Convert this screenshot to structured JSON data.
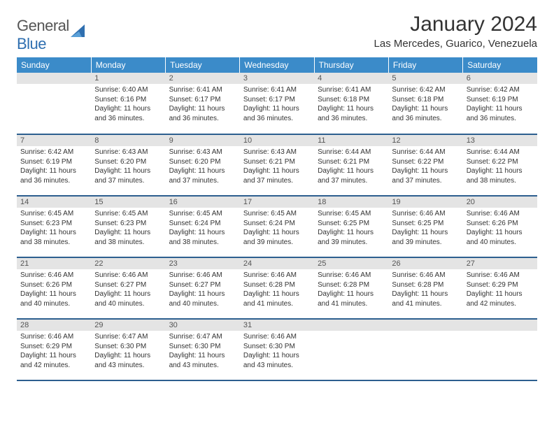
{
  "logo": {
    "word1": "General",
    "word2": "Blue"
  },
  "title": "January 2024",
  "location": "Las Mercedes, Guarico, Venezuela",
  "colors": {
    "header_bg": "#3b8bc9",
    "header_text": "#ffffff",
    "daynum_bg": "#e4e4e4",
    "row_border": "#2d5f8f",
    "logo_blue": "#2f6fb0"
  },
  "day_headers": [
    "Sunday",
    "Monday",
    "Tuesday",
    "Wednesday",
    "Thursday",
    "Friday",
    "Saturday"
  ],
  "weeks": [
    [
      {
        "n": "",
        "sr": "",
        "ss": "",
        "dl": ""
      },
      {
        "n": "1",
        "sr": "6:40 AM",
        "ss": "6:16 PM",
        "dl": "11 hours and 36 minutes."
      },
      {
        "n": "2",
        "sr": "6:41 AM",
        "ss": "6:17 PM",
        "dl": "11 hours and 36 minutes."
      },
      {
        "n": "3",
        "sr": "6:41 AM",
        "ss": "6:17 PM",
        "dl": "11 hours and 36 minutes."
      },
      {
        "n": "4",
        "sr": "6:41 AM",
        "ss": "6:18 PM",
        "dl": "11 hours and 36 minutes."
      },
      {
        "n": "5",
        "sr": "6:42 AM",
        "ss": "6:18 PM",
        "dl": "11 hours and 36 minutes."
      },
      {
        "n": "6",
        "sr": "6:42 AM",
        "ss": "6:19 PM",
        "dl": "11 hours and 36 minutes."
      }
    ],
    [
      {
        "n": "7",
        "sr": "6:42 AM",
        "ss": "6:19 PM",
        "dl": "11 hours and 36 minutes."
      },
      {
        "n": "8",
        "sr": "6:43 AM",
        "ss": "6:20 PM",
        "dl": "11 hours and 37 minutes."
      },
      {
        "n": "9",
        "sr": "6:43 AM",
        "ss": "6:20 PM",
        "dl": "11 hours and 37 minutes."
      },
      {
        "n": "10",
        "sr": "6:43 AM",
        "ss": "6:21 PM",
        "dl": "11 hours and 37 minutes."
      },
      {
        "n": "11",
        "sr": "6:44 AM",
        "ss": "6:21 PM",
        "dl": "11 hours and 37 minutes."
      },
      {
        "n": "12",
        "sr": "6:44 AM",
        "ss": "6:22 PM",
        "dl": "11 hours and 37 minutes."
      },
      {
        "n": "13",
        "sr": "6:44 AM",
        "ss": "6:22 PM",
        "dl": "11 hours and 38 minutes."
      }
    ],
    [
      {
        "n": "14",
        "sr": "6:45 AM",
        "ss": "6:23 PM",
        "dl": "11 hours and 38 minutes."
      },
      {
        "n": "15",
        "sr": "6:45 AM",
        "ss": "6:23 PM",
        "dl": "11 hours and 38 minutes."
      },
      {
        "n": "16",
        "sr": "6:45 AM",
        "ss": "6:24 PM",
        "dl": "11 hours and 38 minutes."
      },
      {
        "n": "17",
        "sr": "6:45 AM",
        "ss": "6:24 PM",
        "dl": "11 hours and 39 minutes."
      },
      {
        "n": "18",
        "sr": "6:45 AM",
        "ss": "6:25 PM",
        "dl": "11 hours and 39 minutes."
      },
      {
        "n": "19",
        "sr": "6:46 AM",
        "ss": "6:25 PM",
        "dl": "11 hours and 39 minutes."
      },
      {
        "n": "20",
        "sr": "6:46 AM",
        "ss": "6:26 PM",
        "dl": "11 hours and 40 minutes."
      }
    ],
    [
      {
        "n": "21",
        "sr": "6:46 AM",
        "ss": "6:26 PM",
        "dl": "11 hours and 40 minutes."
      },
      {
        "n": "22",
        "sr": "6:46 AM",
        "ss": "6:27 PM",
        "dl": "11 hours and 40 minutes."
      },
      {
        "n": "23",
        "sr": "6:46 AM",
        "ss": "6:27 PM",
        "dl": "11 hours and 40 minutes."
      },
      {
        "n": "24",
        "sr": "6:46 AM",
        "ss": "6:28 PM",
        "dl": "11 hours and 41 minutes."
      },
      {
        "n": "25",
        "sr": "6:46 AM",
        "ss": "6:28 PM",
        "dl": "11 hours and 41 minutes."
      },
      {
        "n": "26",
        "sr": "6:46 AM",
        "ss": "6:28 PM",
        "dl": "11 hours and 41 minutes."
      },
      {
        "n": "27",
        "sr": "6:46 AM",
        "ss": "6:29 PM",
        "dl": "11 hours and 42 minutes."
      }
    ],
    [
      {
        "n": "28",
        "sr": "6:46 AM",
        "ss": "6:29 PM",
        "dl": "11 hours and 42 minutes."
      },
      {
        "n": "29",
        "sr": "6:47 AM",
        "ss": "6:30 PM",
        "dl": "11 hours and 43 minutes."
      },
      {
        "n": "30",
        "sr": "6:47 AM",
        "ss": "6:30 PM",
        "dl": "11 hours and 43 minutes."
      },
      {
        "n": "31",
        "sr": "6:46 AM",
        "ss": "6:30 PM",
        "dl": "11 hours and 43 minutes."
      },
      {
        "n": "",
        "sr": "",
        "ss": "",
        "dl": ""
      },
      {
        "n": "",
        "sr": "",
        "ss": "",
        "dl": ""
      },
      {
        "n": "",
        "sr": "",
        "ss": "",
        "dl": ""
      }
    ]
  ],
  "labels": {
    "sunrise": "Sunrise:",
    "sunset": "Sunset:",
    "daylight": "Daylight:"
  }
}
